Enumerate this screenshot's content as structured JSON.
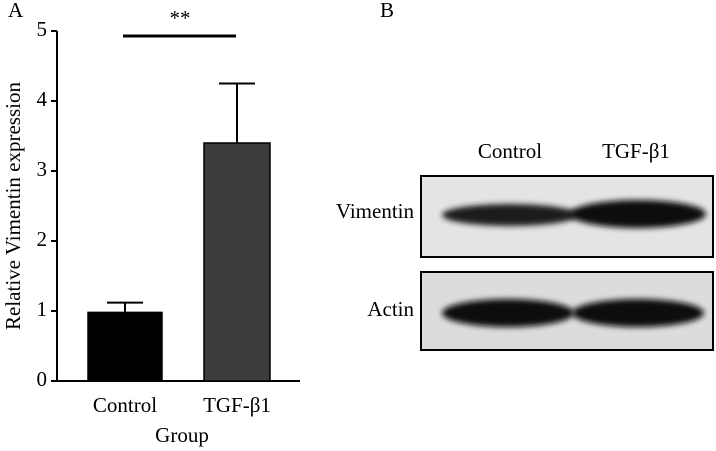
{
  "chart_data": {
    "type": "bar",
    "panel_label": "A",
    "categories": [
      "Control",
      "TGF-β1"
    ],
    "values": [
      0.98,
      3.4
    ],
    "errors": [
      0.14,
      0.85
    ],
    "colors": [
      "#000000",
      "#3c3c3c"
    ],
    "ylabel": "Relative Vimentin expression",
    "xlabel": "Group",
    "annotation": "**",
    "ylim": [
      0,
      5
    ],
    "yticks": [
      0,
      1,
      2,
      3,
      4,
      5
    ],
    "grid": false
  },
  "blot": {
    "panel_label": "B",
    "columns": [
      "Control",
      "TGF-β1"
    ],
    "rows": [
      "Vimentin",
      "Actin"
    ]
  }
}
